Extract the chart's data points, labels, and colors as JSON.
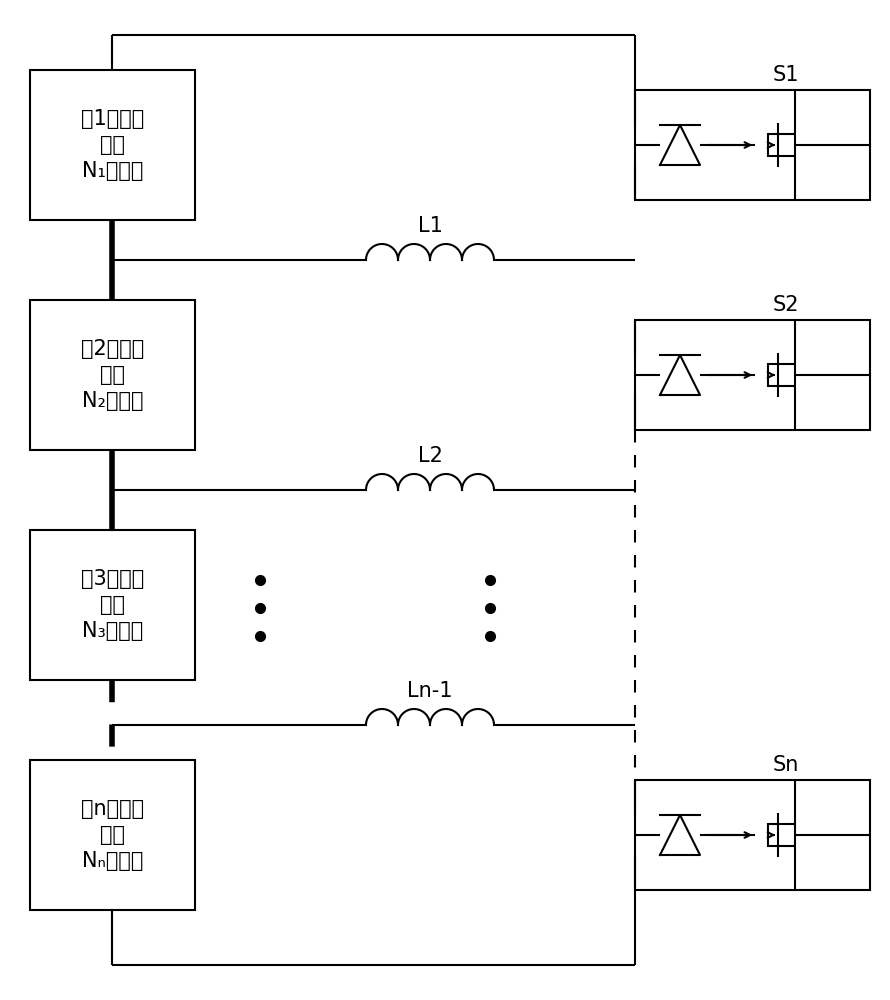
{
  "bg_color": "#ffffff",
  "line_color": "#000000",
  "figsize": [
    8.9,
    10.0
  ],
  "dpi": 100,
  "box_labels": [
    "第1个电池\n模块\nN₁个电池",
    "第2个电池\n模块\nN₂个电池",
    "第3个电池\n模块\nN₃个电池",
    "第n个电池\n模块\nNₙ个电池"
  ],
  "switch_labels": [
    "S1",
    "S2",
    "Sn"
  ],
  "inductor_labels": [
    "L1",
    "L2",
    "Ln-1"
  ],
  "label_fontsize": 15,
  "small_fontsize": 12
}
